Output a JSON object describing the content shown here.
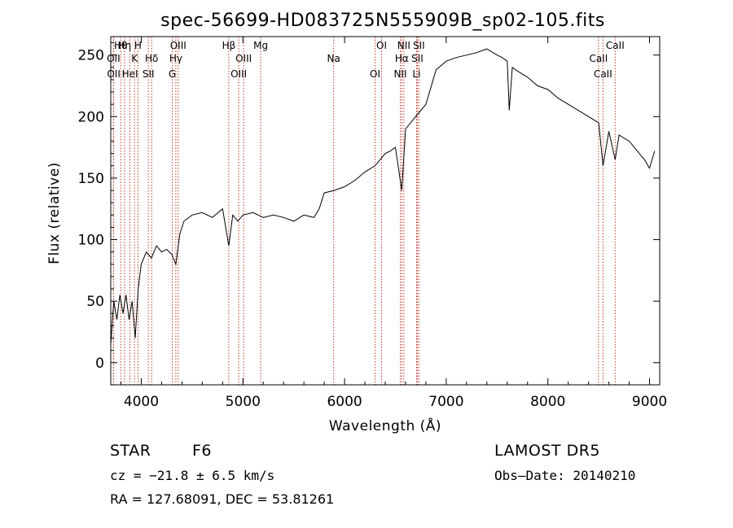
{
  "colors": {
    "spectrum": "#000000",
    "line_marker": "#c0392b",
    "background": "#ffffff"
  },
  "chart_data": {
    "type": "line",
    "title": "spec-56699-HD083725N555909B_sp02-105.fits",
    "xlabel": "Wavelength (Å)",
    "ylabel": "Flux (relative)",
    "xlim": [
      3700,
      9100
    ],
    "ylim": [
      -18,
      265
    ],
    "xticks": [
      4000,
      5000,
      6000,
      7000,
      8000,
      9000
    ],
    "yticks": [
      0,
      50,
      100,
      150,
      200,
      250
    ],
    "grid": false,
    "series": [
      {
        "values_x": [
          3700,
          3730,
          3760,
          3790,
          3820,
          3850,
          3880,
          3910,
          3940,
          3970,
          4000,
          4050,
          4100,
          4150,
          4200,
          4250,
          4300,
          4340,
          4380,
          4420,
          4500,
          4600,
          4700,
          4800,
          4861,
          4900,
          4950,
          5000,
          5100,
          5200,
          5300,
          5400,
          5500,
          5600,
          5700,
          5750,
          5800,
          5900,
          6000,
          6100,
          6200,
          6300,
          6400,
          6450,
          6500,
          6563,
          6600,
          6700,
          6800,
          6900,
          7000,
          7100,
          7200,
          7300,
          7400,
          7500,
          7550,
          7600,
          7620,
          7650,
          7700,
          7800,
          7900,
          8000,
          8100,
          8200,
          8300,
          8400,
          8500,
          8542,
          8600,
          8662,
          8700,
          8800,
          8900,
          8950,
          9000,
          9050
        ],
        "values_y": [
          15,
          50,
          35,
          55,
          40,
          55,
          35,
          50,
          20,
          60,
          80,
          90,
          85,
          95,
          90,
          92,
          88,
          80,
          105,
          115,
          120,
          122,
          118,
          125,
          95,
          120,
          115,
          120,
          122,
          118,
          120,
          118,
          115,
          120,
          118,
          125,
          138,
          140,
          143,
          148,
          155,
          160,
          170,
          172,
          175,
          140,
          190,
          200,
          210,
          238,
          245,
          248,
          250,
          252,
          255,
          250,
          248,
          245,
          205,
          240,
          237,
          232,
          225,
          222,
          215,
          210,
          205,
          200,
          195,
          160,
          188,
          165,
          185,
          180,
          170,
          165,
          158,
          172
        ]
      }
    ],
    "emission_lines": [
      {
        "label": "Hθ",
        "x": 3798
      },
      {
        "label": "OII",
        "x": 3727
      },
      {
        "label": "OII",
        "x": 3729
      },
      {
        "label": "Hη",
        "x": 3835
      },
      {
        "label": "K",
        "x": 3934
      },
      {
        "label": "HeI",
        "x": 3889
      },
      {
        "label": "H",
        "x": 3968
      },
      {
        "label": "Hδ",
        "x": 4102
      },
      {
        "label": "SII",
        "x": 4070
      },
      {
        "label": "OIII",
        "x": 4363
      },
      {
        "label": "Hγ",
        "x": 4340
      },
      {
        "label": "G",
        "x": 4305
      },
      {
        "label": "Hβ",
        "x": 4861
      },
      {
        "label": "OIII",
        "x": 5007
      },
      {
        "label": "OIII",
        "x": 4959
      },
      {
        "label": "Mg",
        "x": 5175
      },
      {
        "label": "Na",
        "x": 5893
      },
      {
        "label": "OI",
        "x": 6300
      },
      {
        "label": "OI",
        "x": 6364
      },
      {
        "label": "Hα",
        "x": 6563
      },
      {
        "label": "NII",
        "x": 6548
      },
      {
        "label": "NII",
        "x": 6583
      },
      {
        "label": "SII",
        "x": 6716
      },
      {
        "label": "Li",
        "x": 6708
      },
      {
        "label": "SII",
        "x": 6731
      },
      {
        "label": "CaII",
        "x": 8498
      },
      {
        "label": "CaII",
        "x": 8542
      },
      {
        "label": "CaII",
        "x": 8662
      }
    ]
  },
  "info": {
    "object_class": "STAR",
    "subclass": "F6",
    "survey": "LAMOST DR5",
    "redshift": "cz = −21.8 ± 6.5 km/s",
    "obs_date": "Obs–Date: 20140210",
    "coords": "RA = 127.68091, DEC =  53.81261"
  }
}
